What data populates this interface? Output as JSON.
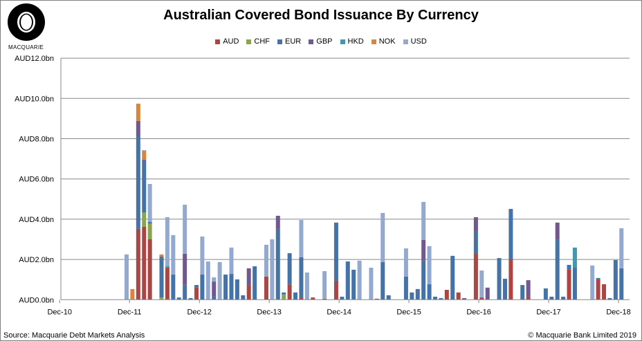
{
  "logo": {
    "text": "MACQUARIE"
  },
  "footer": {
    "source": "Source: Macquarie Debt Markets Analysis",
    "copyright": "© Macquarie Bank Limited 2019"
  },
  "chart_data": {
    "type": "bar",
    "stacked": true,
    "title": "Australian Covered Bond Issuance By Currency",
    "xlabel": "",
    "ylabel": "",
    "ylim": [
      0,
      12
    ],
    "y_ticks": [
      "AUD0.0bn",
      "AUD2.0bn",
      "AUD4.0bn",
      "AUD6.0bn",
      "AUD8.0bn",
      "AUD10.0bn",
      "AUD12.0bn"
    ],
    "x_ticks": [
      "Dec-10",
      "Dec-11",
      "Dec-12",
      "Dec-13",
      "Dec-14",
      "Dec-15",
      "Dec-16",
      "Dec-17",
      "Dec-18"
    ],
    "grid": true,
    "legend_position": "top",
    "series_names": [
      "AUD",
      "CHF",
      "EUR",
      "GBP",
      "HKD",
      "NOK",
      "USD"
    ],
    "colors": {
      "AUD": "#AA4643",
      "CHF": "#89A54E",
      "EUR": "#4572A7",
      "GBP": "#71588F",
      "HKD": "#4198AF",
      "NOK": "#DB843D",
      "USD": "#93A9CF"
    },
    "bars": [
      {
        "month": "Nov-11",
        "USD": 2.25
      },
      {
        "month": "Dec-11",
        "NOK": 0.53
      },
      {
        "month": "Jan-12",
        "AUD": 3.52,
        "EUR": 4.6,
        "GBP": 0.76,
        "NOK": 0.86
      },
      {
        "month": "Feb-12",
        "AUD": 3.62,
        "CHF": 0.72,
        "EUR": 2.52,
        "GBP": 0.09,
        "NOK": 0.45,
        "USD": 0.03
      },
      {
        "month": "Mar-12",
        "AUD": 3.0,
        "CHF": 0.79,
        "EUR": 0.07,
        "USD": 1.89
      },
      {
        "month": "May-12",
        "CHF": 0.11,
        "EUR": 2.03,
        "NOK": 0.11
      },
      {
        "month": "Jun-12",
        "AUD": 1.59,
        "HKD": 0.07,
        "USD": 2.44
      },
      {
        "month": "Jul-12",
        "EUR": 1.25,
        "USD": 1.96
      },
      {
        "month": "Aug-12",
        "EUR": 0.11
      },
      {
        "month": "Sep-12",
        "EUR": 0.74,
        "GBP": 1.54,
        "USD": 2.44
      },
      {
        "month": "Oct-12",
        "EUR": 0.08
      },
      {
        "month": "Nov-12",
        "AUD": 0.6,
        "EUR": 0.13
      },
      {
        "month": "Dec-12",
        "EUR": 1.25,
        "USD": 1.89
      },
      {
        "month": "Jan-13",
        "USD": 1.9
      },
      {
        "month": "Feb-13",
        "EUR": 0.15,
        "GBP": 0.75,
        "USD": 0.21
      },
      {
        "month": "Mar-13",
        "USD": 1.87
      },
      {
        "month": "Apr-13",
        "EUR": 1.25
      },
      {
        "month": "May-13",
        "EUR": 1.28,
        "USD": 1.31
      },
      {
        "month": "Jun-13",
        "EUR": 1.01
      },
      {
        "month": "Jul-13",
        "EUR": 0.22
      },
      {
        "month": "Aug-13",
        "AUD": 0.7,
        "GBP": 0.86
      },
      {
        "month": "Sep-13",
        "EUR": 1.66
      },
      {
        "month": "Nov-13",
        "AUD": 1.15,
        "USD": 1.58
      },
      {
        "month": "Dec-13",
        "USD": 3.0
      },
      {
        "month": "Jan-14",
        "EUR": 3.52,
        "GBP": 0.65
      },
      {
        "month": "Feb-14",
        "CHF": 0.26,
        "EUR": 0.1
      },
      {
        "month": "Mar-14",
        "AUD": 0.76,
        "EUR": 1.55
      },
      {
        "month": "Apr-14",
        "EUR": 0.36
      },
      {
        "month": "May-14",
        "AUD": 0.11,
        "EUR": 2.0,
        "USD": 1.85
      },
      {
        "month": "Jun-14",
        "USD": 1.35
      },
      {
        "month": "Jul-14",
        "AUD": 0.11
      },
      {
        "month": "Sep-14",
        "AUD": 0.05,
        "USD": 1.37
      },
      {
        "month": "Nov-14",
        "AUD": 0.94,
        "EUR": 2.89
      },
      {
        "month": "Dec-14",
        "EUR": 0.15
      },
      {
        "month": "Jan-15",
        "EUR": 1.9
      },
      {
        "month": "Feb-15",
        "EUR": 1.49
      },
      {
        "month": "Mar-15",
        "USD": 1.94
      },
      {
        "month": "May-15",
        "USD": 1.59
      },
      {
        "month": "Jun-15",
        "AUD": 0.05
      },
      {
        "month": "Jul-15",
        "EUR": 1.87,
        "USD": 2.44
      },
      {
        "month": "Aug-15",
        "EUR": 0.22
      },
      {
        "month": "Nov-15",
        "EUR": 1.15,
        "USD": 1.4
      },
      {
        "month": "Dec-15",
        "EUR": 0.36
      },
      {
        "month": "Jan-16",
        "EUR": 0.53
      },
      {
        "month": "Feb-16",
        "EUR": 1.94,
        "GBP": 1.03,
        "USD": 1.89
      },
      {
        "month": "Mar-16",
        "EUR": 0.77,
        "USD": 1.89
      },
      {
        "month": "Apr-16",
        "EUR": 0.15
      },
      {
        "month": "May-16",
        "EUR": 0.08
      },
      {
        "month": "Jun-16",
        "AUD": 0.49
      },
      {
        "month": "Jul-16",
        "EUR": 2.18
      },
      {
        "month": "Aug-16",
        "AUD": 0.36
      },
      {
        "month": "Sep-16",
        "GBP": 0.08
      },
      {
        "month": "Nov-16",
        "AUD": 2.31,
        "EUR": 1.07,
        "GBP": 0.72
      },
      {
        "month": "Dec-16",
        "AUD": 0.11,
        "USD": 1.34
      },
      {
        "month": "Jan-17",
        "GBP": 0.6
      },
      {
        "month": "Mar-17",
        "EUR": 2.07
      },
      {
        "month": "Apr-17",
        "EUR": 1.04
      },
      {
        "month": "May-17",
        "AUD": 2.0,
        "EUR": 2.51
      },
      {
        "month": "Jul-17",
        "EUR": 0.73
      },
      {
        "month": "Aug-17",
        "AUD": 0.15,
        "GBP": 0.82
      },
      {
        "month": "Nov-17",
        "EUR": 0.56
      },
      {
        "month": "Dec-17",
        "EUR": 0.15
      },
      {
        "month": "Jan-18",
        "EUR": 2.97,
        "GBP": 0.86
      },
      {
        "month": "Feb-18",
        "EUR": 0.15
      },
      {
        "month": "Mar-18",
        "AUD": 1.49,
        "EUR": 0.24
      },
      {
        "month": "Apr-18",
        "EUR": 1.59,
        "HKD": 1.0
      },
      {
        "month": "Jul-18",
        "USD": 1.7
      },
      {
        "month": "Aug-18",
        "AUD": 1.01,
        "EUR": 0.07
      },
      {
        "month": "Sep-18",
        "AUD": 0.77
      },
      {
        "month": "Oct-18",
        "EUR": 0.08
      },
      {
        "month": "Nov-18",
        "EUR": 1.97
      },
      {
        "month": "Dec-18",
        "EUR": 1.56,
        "USD": 1.99
      }
    ]
  }
}
